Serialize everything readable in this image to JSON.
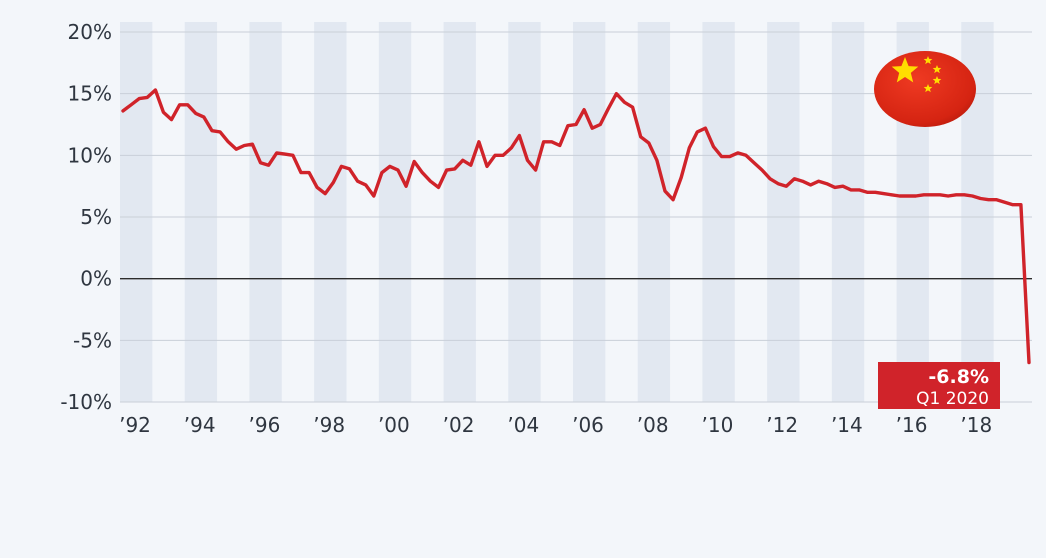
{
  "chart_data": {
    "type": "line",
    "title": "",
    "xlabel": "",
    "ylabel": "",
    "x_tick_labels": [
      "’92",
      "’94",
      "’96",
      "’98",
      "’00",
      "’02",
      "’04",
      "’06",
      "’08",
      "’10",
      "’12",
      "’14",
      "’16",
      "’18"
    ],
    "y_tick_labels": [
      "20%",
      "15%",
      "10%",
      "5%",
      "0%",
      "-5%",
      "-10%"
    ],
    "ylim": [
      -10,
      20
    ],
    "grid": "horizontal gridlines, alternating vertical year bands",
    "series": [
      {
        "color": "#d0232a",
        "x": [
          1992.0,
          1992.25,
          1992.5,
          1992.75,
          1993.0,
          1993.25,
          1993.5,
          1993.75,
          1994.0,
          1994.25,
          1994.5,
          1994.75,
          1995.0,
          1995.25,
          1995.5,
          1995.75,
          1996.0,
          1996.25,
          1996.5,
          1996.75,
          1997.0,
          1997.25,
          1997.5,
          1997.75,
          1998.0,
          1998.25,
          1998.5,
          1998.75,
          1999.0,
          1999.25,
          1999.5,
          1999.75,
          2000.0,
          2000.25,
          2000.5,
          2000.75,
          2001.0,
          2001.25,
          2001.5,
          2001.75,
          2002.0,
          2002.25,
          2002.5,
          2002.75,
          2003.0,
          2003.25,
          2003.5,
          2003.75,
          2004.0,
          2004.25,
          2004.5,
          2004.75,
          2005.0,
          2005.25,
          2005.5,
          2005.75,
          2006.0,
          2006.25,
          2006.5,
          2006.75,
          2007.0,
          2007.25,
          2007.5,
          2007.75,
          2008.0,
          2008.25,
          2008.5,
          2008.75,
          2009.0,
          2009.25,
          2009.5,
          2009.75,
          2010.0,
          2010.25,
          2010.5,
          2010.75,
          2011.0,
          2011.25,
          2011.5,
          2011.75,
          2012.0,
          2012.25,
          2012.5,
          2012.75,
          2013.0,
          2013.25,
          2013.5,
          2013.75,
          2014.0,
          2014.25,
          2014.5,
          2014.75,
          2015.0,
          2015.25,
          2015.5,
          2015.75,
          2016.0,
          2016.25,
          2016.5,
          2016.75,
          2017.0,
          2017.25,
          2017.5,
          2017.75,
          2018.0,
          2018.25,
          2018.5,
          2018.75,
          2019.0,
          2019.25,
          2019.5,
          2019.75,
          2020.0
        ],
        "values": [
          13.6,
          14.1,
          14.6,
          14.7,
          15.3,
          13.5,
          12.9,
          14.1,
          14.1,
          13.4,
          13.1,
          12.0,
          11.9,
          11.1,
          10.5,
          10.8,
          10.9,
          9.4,
          9.2,
          10.2,
          10.1,
          10.0,
          8.6,
          8.6,
          7.4,
          6.9,
          7.8,
          9.1,
          8.9,
          7.9,
          7.6,
          6.7,
          8.6,
          9.1,
          8.8,
          7.5,
          9.5,
          8.6,
          7.9,
          7.4,
          8.8,
          8.9,
          9.6,
          9.2,
          11.1,
          9.1,
          10.0,
          10.0,
          10.6,
          11.6,
          9.6,
          8.8,
          11.1,
          11.1,
          10.8,
          12.4,
          12.5,
          13.7,
          12.2,
          12.5,
          13.8,
          15.0,
          14.3,
          13.9,
          11.5,
          11.0,
          9.6,
          7.1,
          6.4,
          8.2,
          10.6,
          11.9,
          12.2,
          10.7,
          9.9,
          9.9,
          10.2,
          10.0,
          9.4,
          8.8,
          8.1,
          7.7,
          7.5,
          8.1,
          7.9,
          7.6,
          7.9,
          7.7,
          7.4,
          7.5,
          7.2,
          7.2,
          7.0,
          7.0,
          6.9,
          6.8,
          6.7,
          6.7,
          6.7,
          6.8,
          6.8,
          6.8,
          6.7,
          6.8,
          6.8,
          6.7,
          6.5,
          6.4,
          6.4,
          6.2,
          6.0,
          6.0,
          -6.8
        ]
      }
    ],
    "annotation": {
      "value_text": "-6.8%",
      "date_text": "Q1 2020"
    }
  },
  "colors": {
    "line": "#d0232a",
    "band": "#e2e8f1",
    "grid": "#c9cfd8",
    "zero_line": "#2b2b2b",
    "flag_red": "#de2910",
    "flag_yellow": "#ffde00"
  },
  "icons": {
    "flag": "china-flag-icon"
  }
}
